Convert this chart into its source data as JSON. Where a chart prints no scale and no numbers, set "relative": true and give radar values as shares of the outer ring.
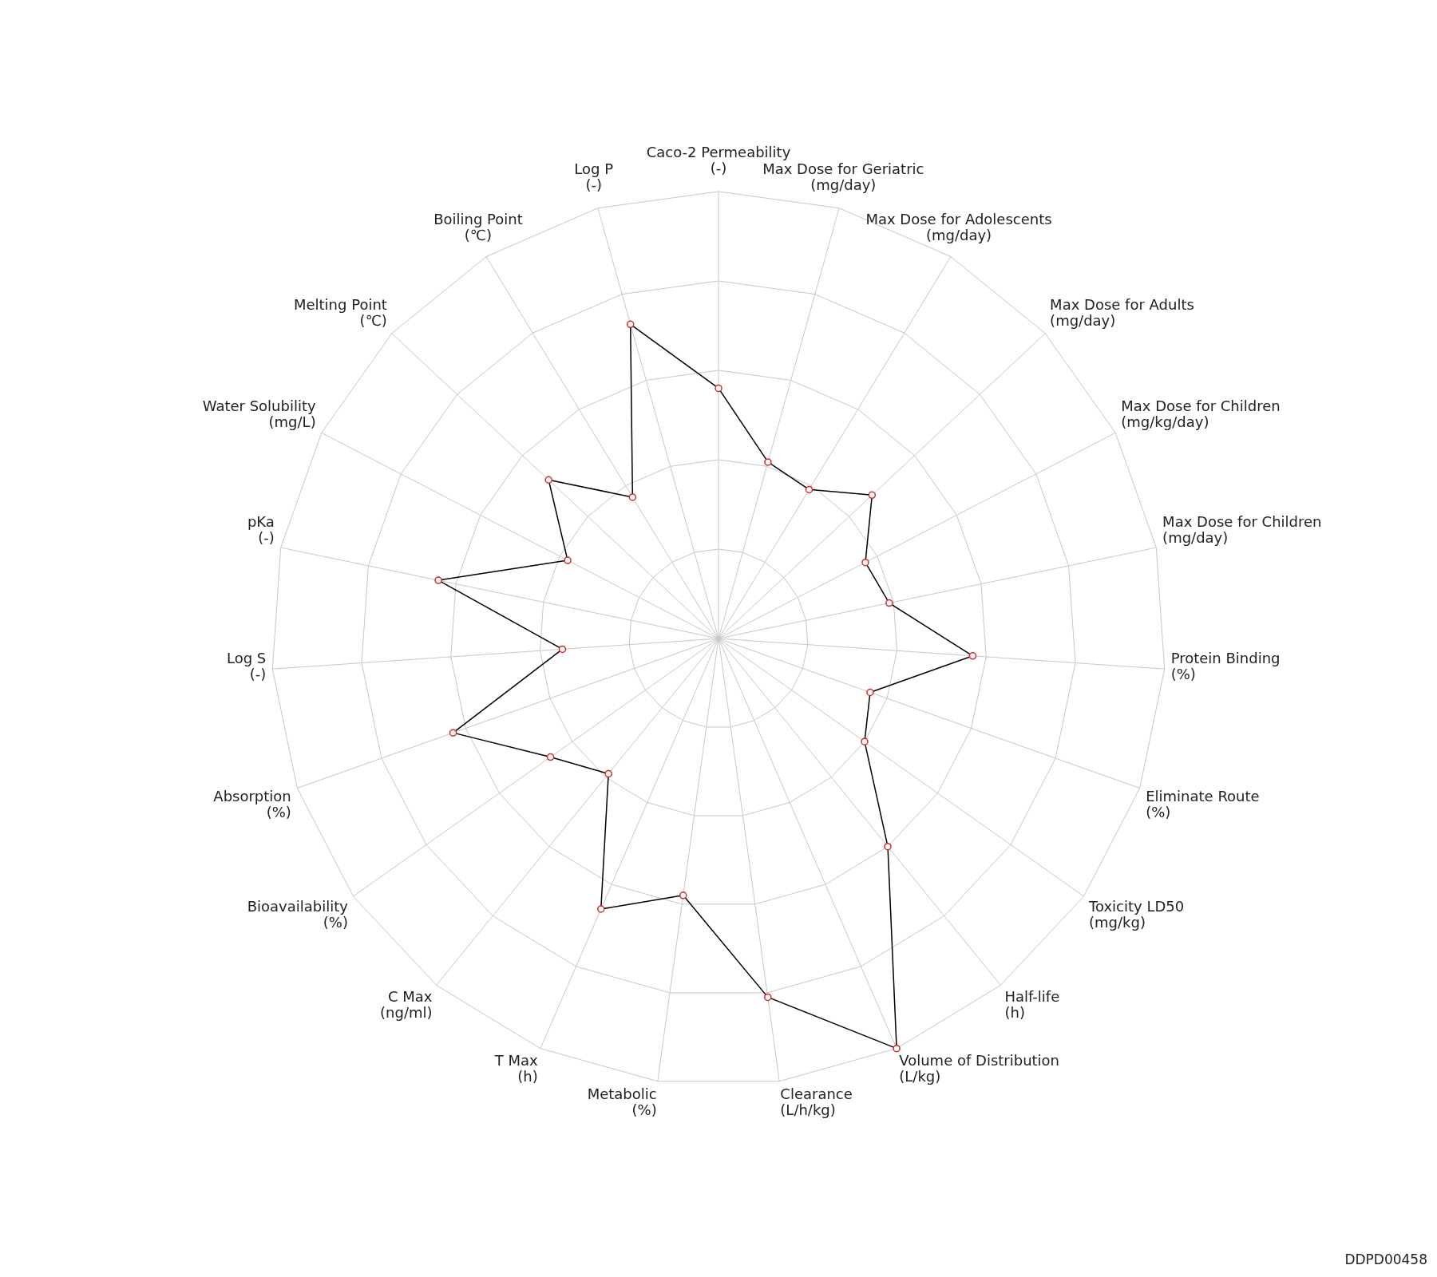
{
  "chart_data": {
    "type": "radar",
    "relative": true,
    "categories": [
      "Caco-2 Permeability\n(-)",
      "Max Dose for Geriatric\n(mg/day)",
      "Max Dose for Adolescents\n(mg/day)",
      "Max Dose for Adults\n(mg/day)",
      "Max Dose for Children\n(mg/kg/day)",
      "Max Dose for Children\n(mg/day)",
      "Protein Binding\n(%)",
      "Eliminate Route\n(%)",
      "Toxicity LD50\n(mg/kg)",
      "Half-life\n(h)",
      "Volume of Distribution\n(L/kg)",
      "Clearance\n(L/h/kg)",
      "Metabolic\n(%)",
      "T Max\n(h)",
      "C Max\n(ng/ml)",
      "Bioavailability\n(%)",
      "Absorption\n(%)",
      "Log S\n(-)",
      "pKa\n(-)",
      "Water Solubility\n(mg/L)",
      "Melting Point\n(℃)",
      "Boiling Point\n(℃)",
      "Log P\n(-)"
    ],
    "series": [
      {
        "color": "#000000",
        "values": [
          0.56,
          0.41,
          0.39,
          0.47,
          0.37,
          0.39,
          0.57,
          0.36,
          0.4,
          0.6,
          1.0,
          0.81,
          0.58,
          0.66,
          0.39,
          0.46,
          0.63,
          0.35,
          0.64,
          0.38,
          0.52,
          0.37,
          0.73
        ]
      }
    ],
    "marker": "circle",
    "legend": false,
    "annotations": [
      "DDPD00458"
    ]
  }
}
